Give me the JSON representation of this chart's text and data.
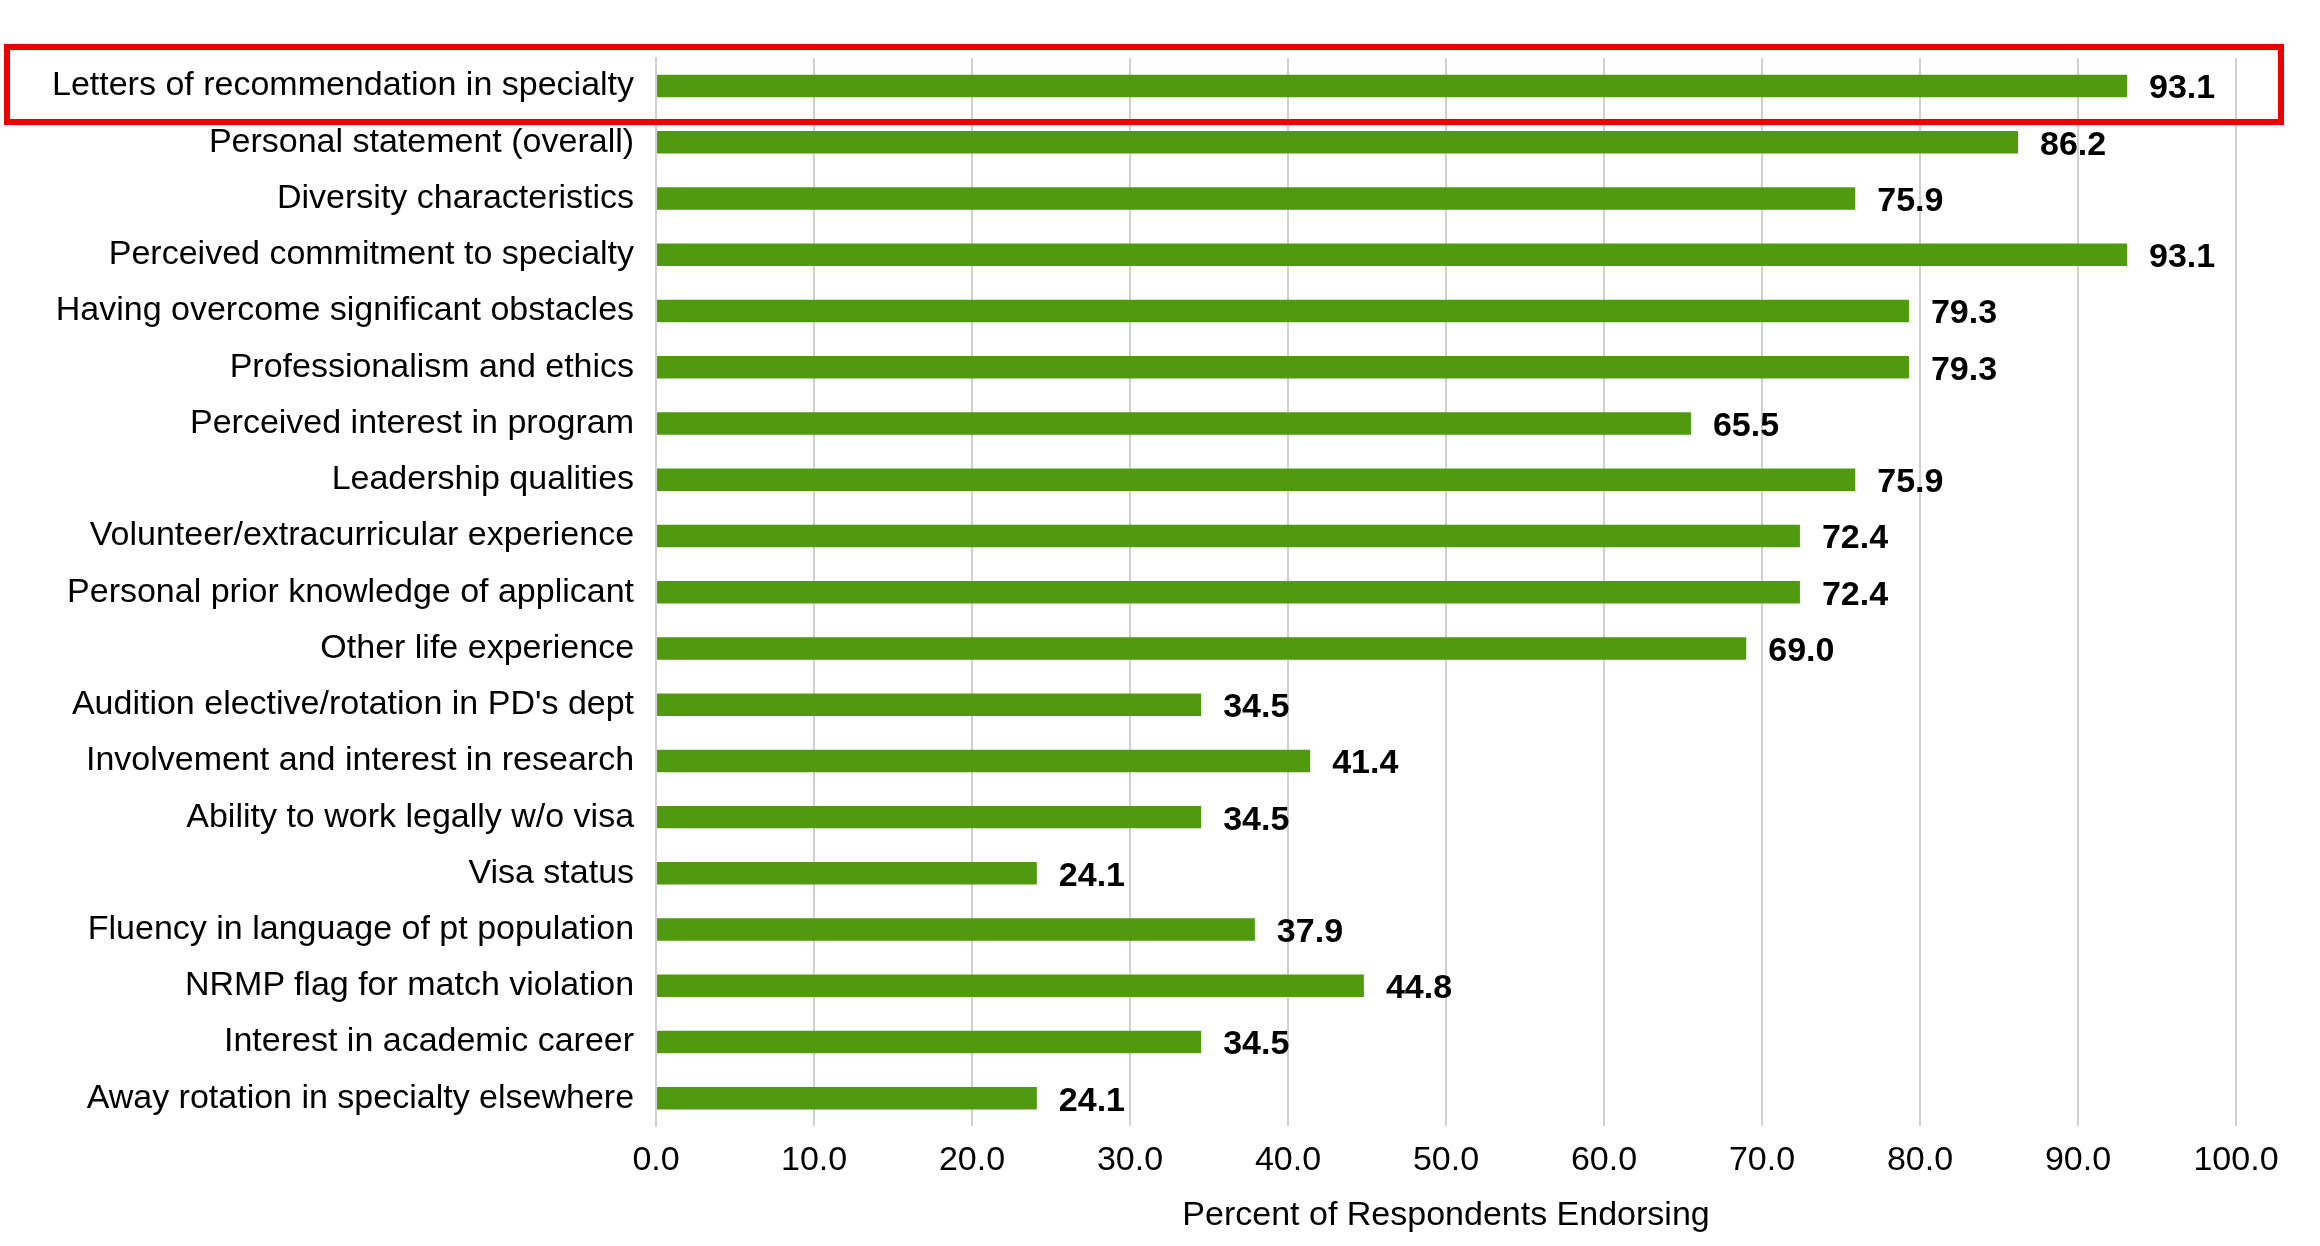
{
  "chart_data": {
    "type": "bar",
    "orientation": "horizontal",
    "xlabel": "Percent of Respondents Endorsing",
    "categories": [
      "Letters of recommendation in specialty",
      "Personal statement (overall)",
      "Diversity characteristics",
      "Perceived commitment to specialty",
      "Having overcome significant obstacles",
      "Professionalism and ethics",
      "Perceived interest in program",
      "Leadership qualities",
      "Volunteer/extracurricular experience",
      "Personal prior knowledge of applicant",
      "Other life experience",
      "Audition elective/rotation in PD's dept",
      "Involvement and interest in research",
      "Ability to work legally w/o visa",
      "Visa status",
      "Fluency in language of pt population",
      "NRMP flag for match violation",
      "Interest in academic career",
      "Away rotation in specialty elsewhere"
    ],
    "values": [
      93.1,
      86.2,
      75.9,
      93.1,
      79.3,
      79.3,
      65.5,
      75.9,
      72.4,
      72.4,
      69.0,
      34.5,
      41.4,
      34.5,
      24.1,
      37.9,
      44.8,
      34.5,
      24.1
    ],
    "value_labels": [
      "93.1",
      "86.2",
      "75.9",
      "93.1",
      "79.3",
      "79.3",
      "65.5",
      "75.9",
      "72.4",
      "72.4",
      "69.0",
      "34.5",
      "41.4",
      "34.5",
      "24.1",
      "37.9",
      "44.8",
      "34.5",
      "24.1"
    ],
    "color": "#4f9a0e",
    "xlim": [
      0,
      100
    ],
    "xticks": [
      {
        "value": 0,
        "label": "0.0"
      },
      {
        "value": 10,
        "label": "10.0"
      },
      {
        "value": 20,
        "label": "20.0"
      },
      {
        "value": 30,
        "label": "30.0"
      },
      {
        "value": 40,
        "label": "40.0"
      },
      {
        "value": 50,
        "label": "50.0"
      },
      {
        "value": 60,
        "label": "60.0"
      },
      {
        "value": 70,
        "label": "70.0"
      },
      {
        "value": 80,
        "label": "80.0"
      },
      {
        "value": 90,
        "label": "90.0"
      },
      {
        "value": 100,
        "label": "100.0"
      }
    ],
    "grid": "x",
    "legend": false
  }
}
